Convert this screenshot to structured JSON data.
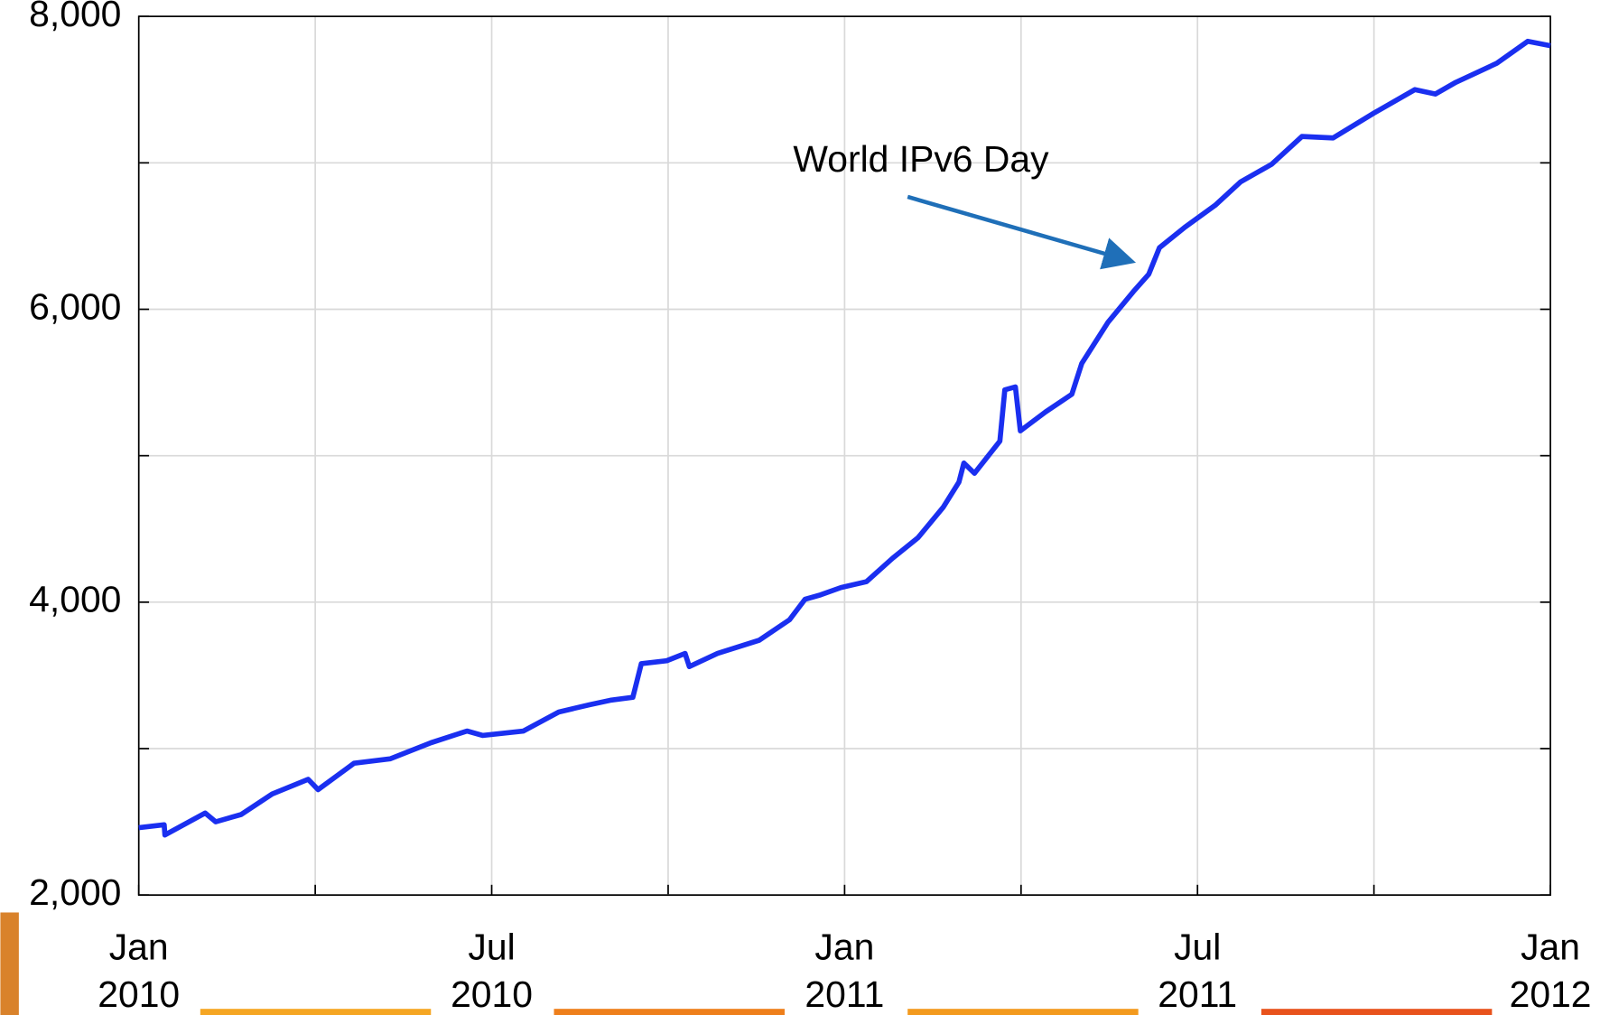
{
  "chart_data": {
    "type": "line",
    "annotation": "World IPv6 Day",
    "x": [
      2010.0,
      2010.036,
      2010.037,
      2010.094,
      2010.109,
      2010.145,
      2010.189,
      2010.24,
      2010.254,
      2010.305,
      2010.356,
      2010.414,
      2010.465,
      2010.487,
      2010.545,
      2010.595,
      2010.639,
      2010.668,
      2010.7,
      2010.712,
      2010.748,
      2010.774,
      2010.78,
      2010.82,
      2010.879,
      2010.922,
      2010.944,
      2010.966,
      2010.995,
      2011.031,
      2011.068,
      2011.104,
      2011.14,
      2011.162,
      2011.169,
      2011.184,
      2011.22,
      2011.227,
      2011.242,
      2011.249,
      2011.285,
      2011.322,
      2011.336,
      2011.373,
      2011.409,
      2011.431,
      2011.446,
      2011.482,
      2011.525,
      2011.561,
      2011.605,
      2011.648,
      2011.692,
      2011.75,
      2011.808,
      2011.837,
      2011.866,
      2011.924,
      2011.968,
      2012.0
    ],
    "series": [
      {
        "color": "#1a2ff0",
        "values": [
          2460,
          2480,
          2410,
          2560,
          2500,
          2550,
          2690,
          2790,
          2720,
          2900,
          2930,
          3040,
          3120,
          3090,
          3120,
          3250,
          3300,
          3330,
          3350,
          3580,
          3600,
          3650,
          3560,
          3650,
          3740,
          3880,
          4020,
          4050,
          4100,
          4140,
          4300,
          4440,
          4650,
          4820,
          4950,
          4880,
          5100,
          5450,
          5470,
          5170,
          5300,
          5420,
          5630,
          5910,
          6120,
          6240,
          6420,
          6560,
          6710,
          6870,
          6990,
          7180,
          7170,
          7340,
          7500,
          7470,
          7550,
          7680,
          7830,
          7800
        ]
      }
    ],
    "xlim": [
      2010,
      2012
    ],
    "xticks": [
      {
        "value": 2010,
        "label": "Jan 2010"
      },
      {
        "value": 2010.5,
        "label": "Jul 2010"
      },
      {
        "value": 2011,
        "label": "Jan 2011"
      },
      {
        "value": 2011.5,
        "label": "Jul 2011"
      },
      {
        "value": 2012,
        "label": "Jan 2012"
      }
    ],
    "minor_xticks": [
      2010.25,
      2010.75,
      2011.25,
      2011.75
    ],
    "ylim": [
      2000,
      8000
    ],
    "yticks": [
      {
        "value": 2000,
        "label": "2,000"
      },
      {
        "value": 4000,
        "label": "4,000"
      },
      {
        "value": 6000,
        "label": "6,000"
      },
      {
        "value": 8000,
        "label": "8,000"
      }
    ],
    "minor_yticks": [
      3000,
      5000,
      7000
    ],
    "grid": true
  }
}
